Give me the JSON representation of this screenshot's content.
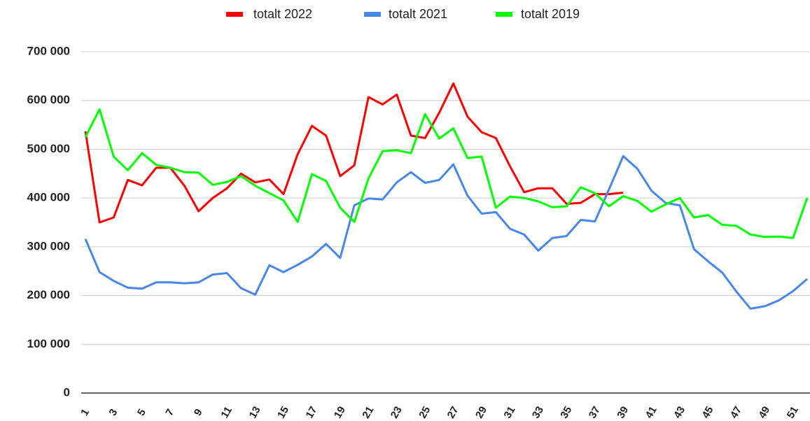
{
  "chart_data": {
    "type": "line",
    "categories": [
      1,
      null,
      3,
      null,
      5,
      null,
      7,
      null,
      9,
      null,
      11,
      null,
      13,
      null,
      15,
      null,
      17,
      null,
      19,
      null,
      21,
      null,
      23,
      null,
      25,
      null,
      27,
      null,
      29,
      null,
      31,
      null,
      33,
      null,
      35,
      null,
      37,
      null,
      39,
      null,
      41,
      null,
      43,
      null,
      45,
      null,
      47,
      null,
      49,
      null,
      51,
      null
    ],
    "series": [
      {
        "name": "totalt 2022",
        "color": "#ff0000",
        "values": [
          537000,
          350000,
          360000,
          437000,
          426000,
          462000,
          462000,
          425000,
          373000,
          400000,
          420000,
          450000,
          432000,
          438000,
          408000,
          490000,
          548000,
          528000,
          445000,
          467000,
          607000,
          592000,
          612000,
          528000,
          523000,
          575000,
          635000,
          567000,
          535000,
          523000,
          465000,
          412000,
          420000,
          420000,
          388000,
          390000,
          408000,
          408000,
          411000,
          null,
          null,
          null,
          null,
          null,
          null,
          null,
          null,
          null,
          null,
          null,
          null,
          null
        ]
      },
      {
        "name": "totalt 2021",
        "color": "#4a86e8",
        "values": [
          316000,
          248000,
          230000,
          216000,
          214000,
          227000,
          227000,
          225000,
          227000,
          243000,
          246000,
          215000,
          202000,
          262000,
          248000,
          263000,
          280000,
          306000,
          277000,
          385000,
          399000,
          397000,
          432000,
          453000,
          431000,
          437000,
          469000,
          405000,
          368000,
          371000,
          337000,
          325000,
          292000,
          318000,
          322000,
          355000,
          352000,
          418000,
          486000,
          460000,
          415000,
          390000,
          385000,
          295000,
          270000,
          247000,
          208000,
          173000,
          178000,
          190000,
          209000,
          234000
        ]
      },
      {
        "name": "totalt 2019",
        "color": "#00ff00",
        "values": [
          525000,
          582000,
          485000,
          457000,
          492000,
          468000,
          462000,
          453000,
          452000,
          427000,
          433000,
          445000,
          425000,
          410000,
          395000,
          351000,
          449000,
          435000,
          380000,
          351000,
          440000,
          496000,
          498000,
          492000,
          572000,
          522000,
          543000,
          482000,
          485000,
          380000,
          403000,
          400000,
          393000,
          381000,
          383000,
          422000,
          410000,
          383000,
          404000,
          394000,
          372000,
          387000,
          400000,
          360000,
          365000,
          345000,
          343000,
          325000,
          320000,
          321000,
          318000,
          400000
        ]
      }
    ],
    "ylim": [
      0,
      700000
    ],
    "yticks": [
      0,
      {
        "value": 100000,
        "label": "100 000"
      },
      {
        "value": 200000,
        "label": "200 000"
      },
      {
        "value": 300000,
        "label": "300 000"
      },
      {
        "value": 400000,
        "label": "400 000"
      },
      {
        "value": 500000,
        "label": "500 000"
      },
      {
        "value": 600000,
        "label": "600 000"
      },
      {
        "value": 700000,
        "label": "700 000"
      }
    ],
    "grid": true,
    "legend": "top"
  }
}
